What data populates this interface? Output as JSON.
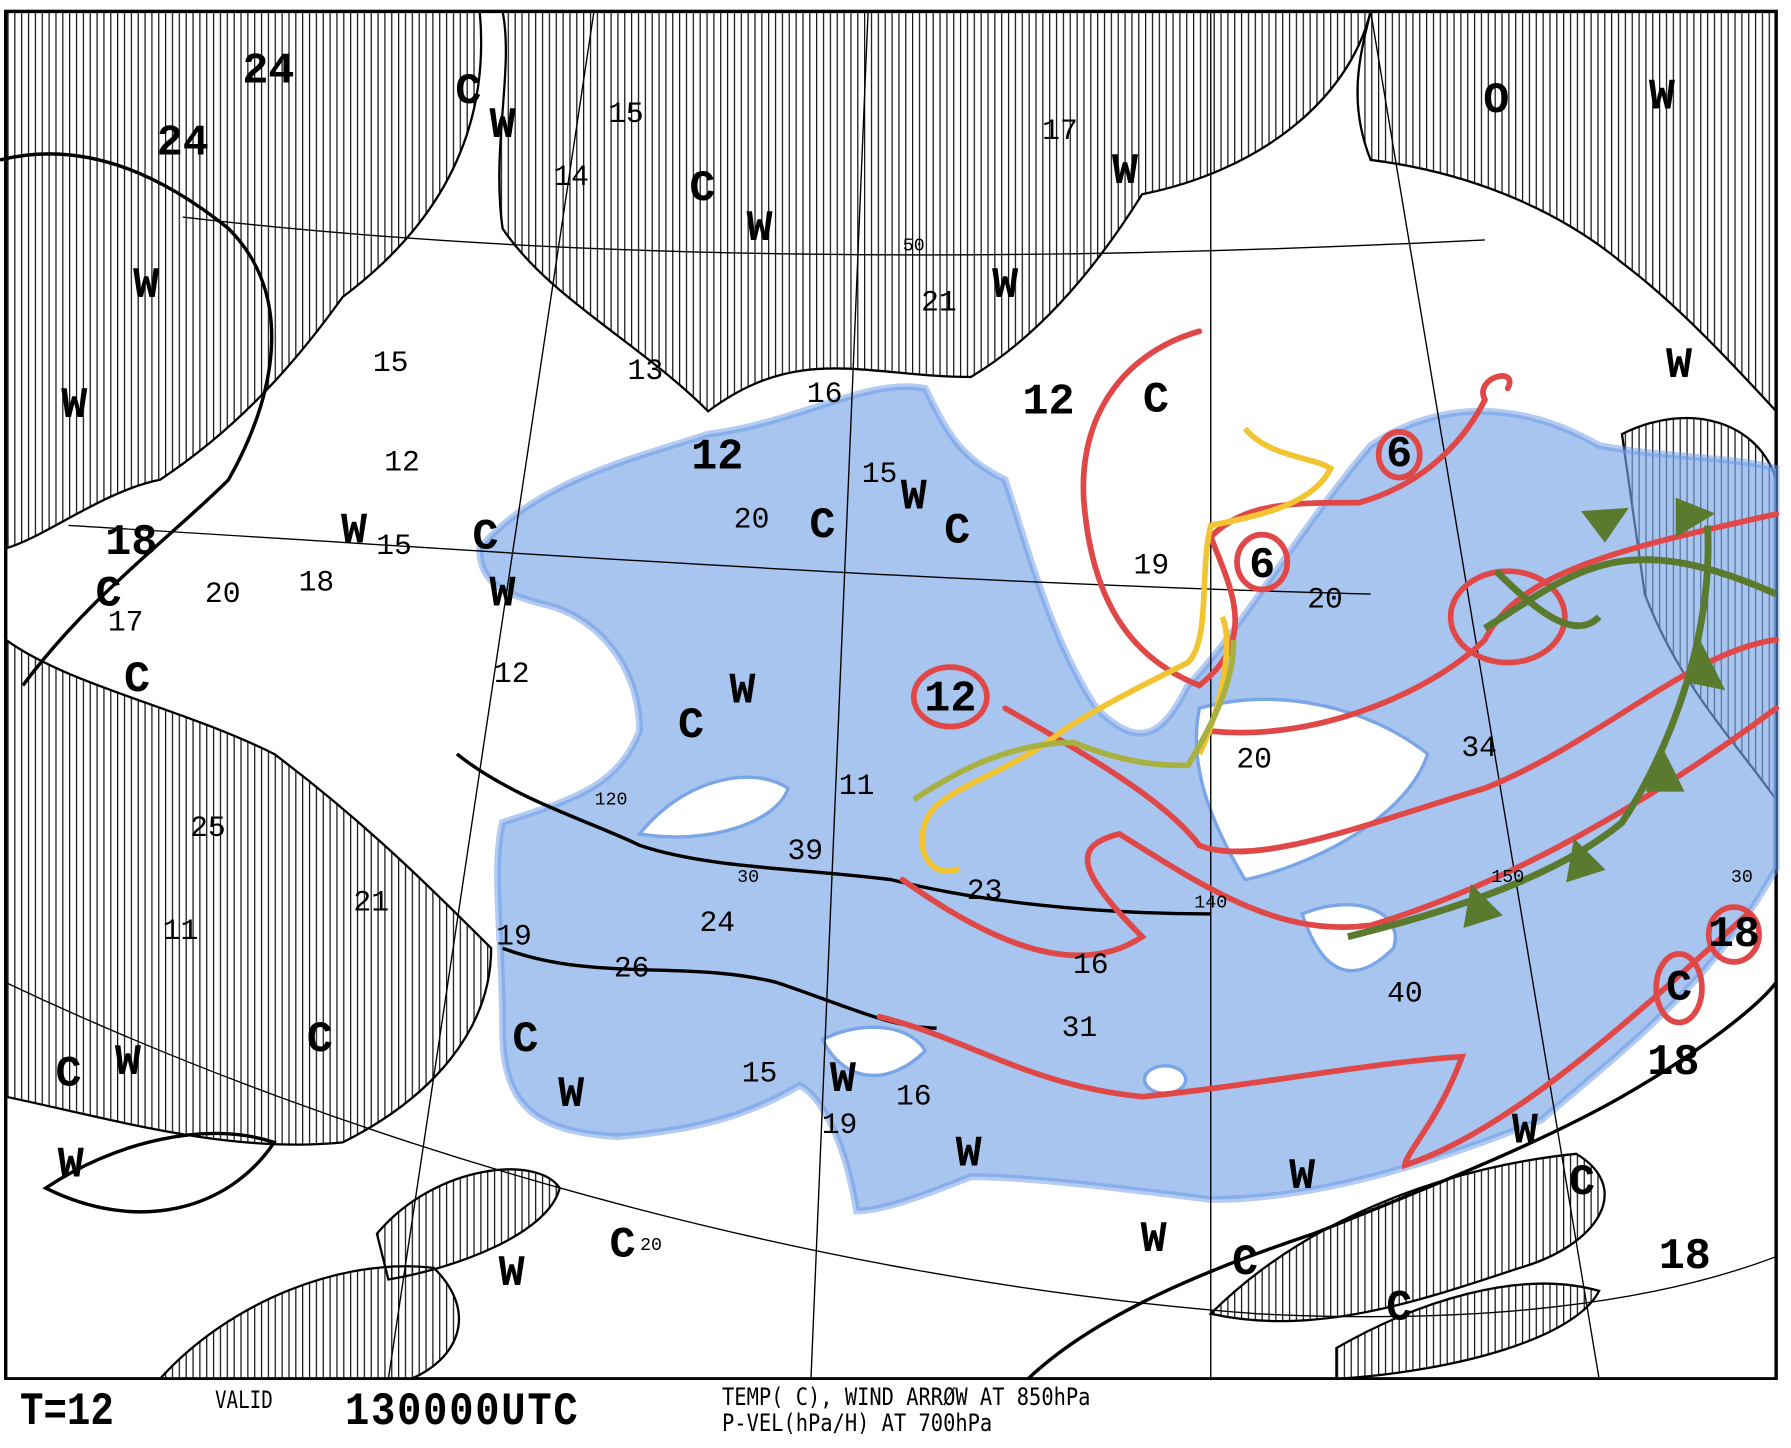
{
  "footer": {
    "forecast_hour": "T=12",
    "valid_label": "VALID",
    "valid_time": "130000UTC",
    "description_line1": "TEMP( C), WIND ARRØW AT 850hPa",
    "description_line2": "P-VEL(hPa/H) AT 700hPa"
  },
  "map": {
    "big_labels": [
      "24",
      "24",
      "W",
      "W",
      "18",
      "C",
      "C",
      "12",
      "W",
      "C",
      "C",
      "W",
      "W",
      "W",
      "12",
      "C",
      "W",
      "W",
      "O",
      "6",
      "6",
      "12",
      "C",
      "W",
      "C",
      "W",
      "W",
      "C",
      "C",
      "W",
      "18",
      "C",
      "18",
      "W",
      "W",
      "W",
      "C",
      "C",
      "C",
      "C",
      "18",
      "W",
      "W",
      "C",
      "C",
      "W",
      "C",
      "W",
      "W",
      "W"
    ],
    "small_labels": [
      "15",
      "14",
      "17",
      "21",
      "15",
      "13",
      "16",
      "12",
      "15",
      "18",
      "20",
      "17",
      "12",
      "25",
      "21",
      "11",
      "19",
      "26",
      "24",
      "39",
      "23",
      "11",
      "20",
      "34",
      "40",
      "16",
      "31",
      "15",
      "16",
      "19",
      "19",
      "20",
      "20",
      "15"
    ],
    "grid_labels": [
      "50",
      "120",
      "30",
      "140",
      "150",
      "30",
      "20"
    ],
    "colors": {
      "hatch": "#000000",
      "ascent_area": "#7aa6e8",
      "temperature_contour": "#e04848",
      "moist_axis": "#f2c431",
      "front": "#5a7a2e"
    }
  }
}
